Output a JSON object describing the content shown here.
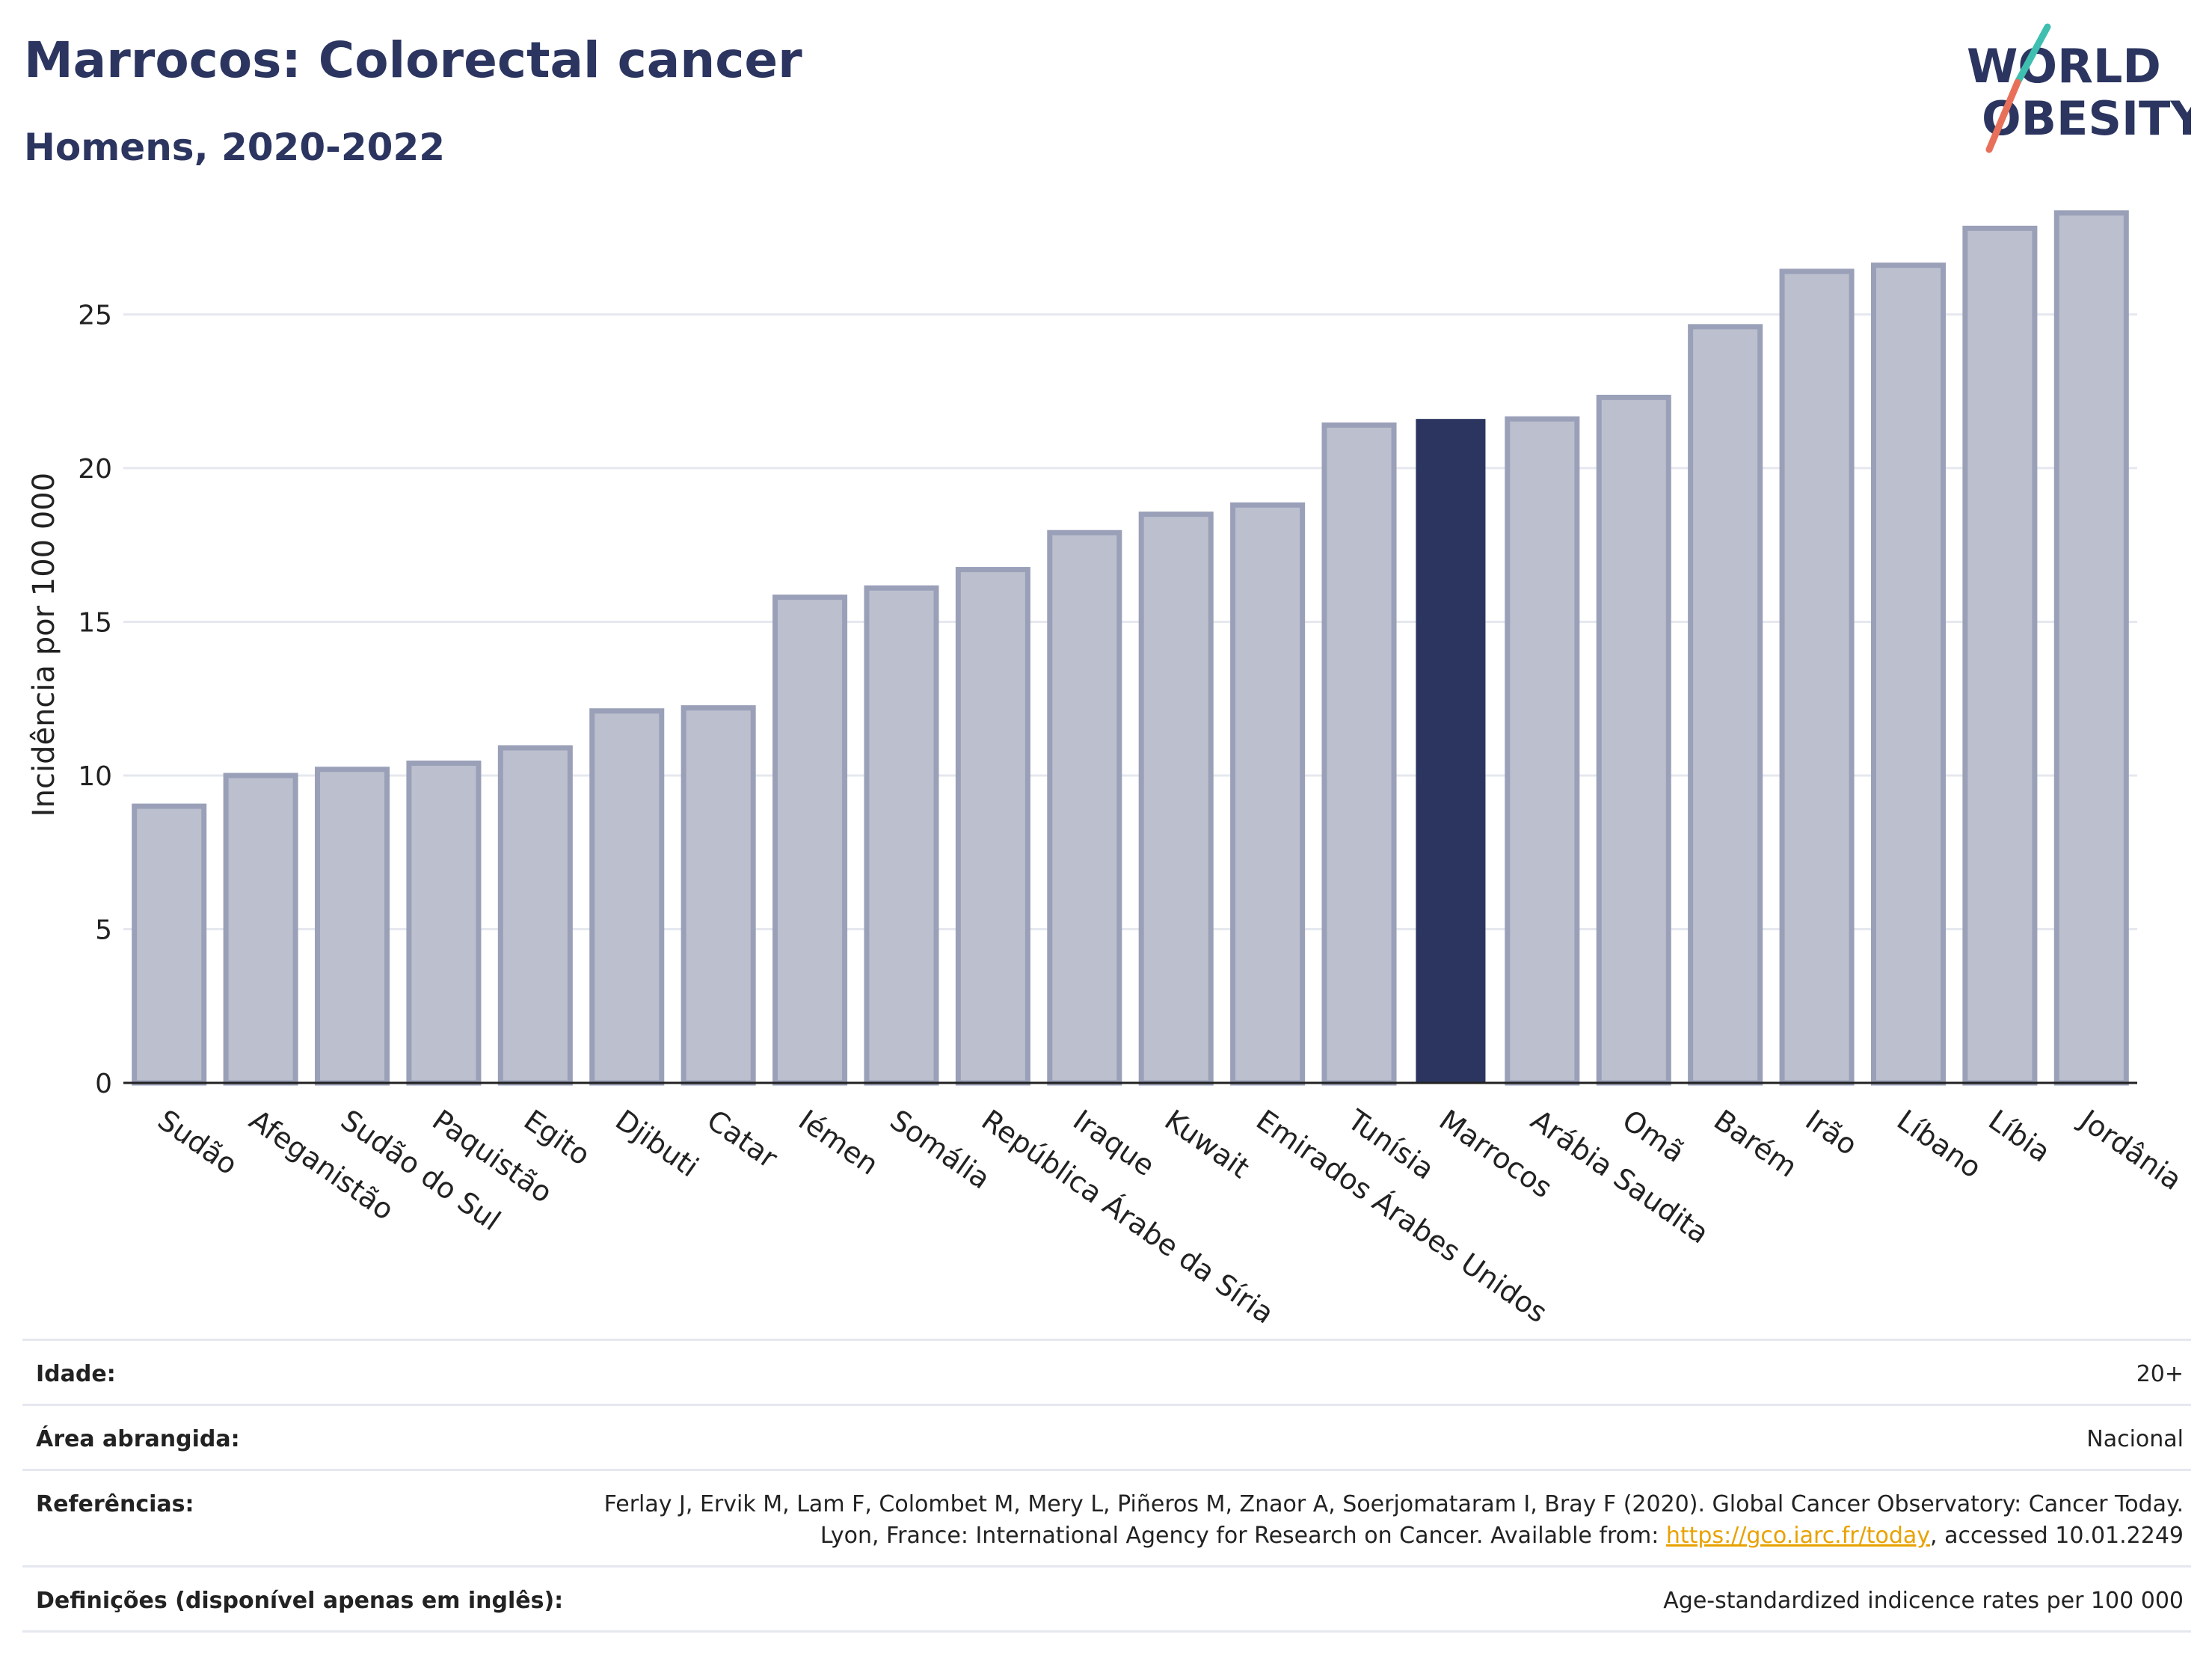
{
  "header": {
    "title": "Marrocos: Colorectal cancer",
    "subtitle": "Homens, 2020-2022"
  },
  "logo": {
    "line1": "WORLD",
    "line2": "OBESITY"
  },
  "colors": {
    "bar": "#bcc0ce",
    "bar_border": "#9aa0b8",
    "highlight": "#2b3560",
    "grid": "#e6e8ef"
  },
  "chart_data": {
    "type": "bar",
    "ylabel": "Incidência por 100 000",
    "ylim": [
      0,
      29
    ],
    "yticks": [
      0,
      5,
      10,
      15,
      20,
      25
    ],
    "highlight": "Marrocos",
    "categories": [
      "Sudão",
      "Afeganistão",
      "Sudão do Sul",
      "Paquistão",
      "Egito",
      "Djibuti",
      "Catar",
      "Iémen",
      "Somália",
      "República Árabe da Síria",
      "Iraque",
      "Kuwait",
      "Emirados Árabes Unidos",
      "Tunísia",
      "Marrocos",
      "Arábia Saudita",
      "Omã",
      "Barém",
      "Irão",
      "Líbano",
      "Líbia",
      "Jordânia"
    ],
    "values": [
      9.0,
      10.0,
      10.2,
      10.4,
      10.9,
      12.1,
      12.2,
      15.8,
      16.1,
      16.7,
      17.9,
      18.5,
      18.8,
      21.4,
      21.6,
      21.6,
      22.3,
      24.6,
      26.4,
      26.6,
      27.8,
      28.3
    ]
  },
  "footer": {
    "age_label": "Idade:",
    "age_value": "20+",
    "area_label": "Área abrangida:",
    "area_value": "Nacional",
    "ref_label": "Referências:",
    "ref_text_1": "Ferlay J, Ervik M, Lam F, Colombet M, Mery L, Piñeros M, Znaor A, Soerjomataram I, Bray F (2020). Global Cancer Observatory: Cancer Today. Lyon, France: International Agency for Research on Cancer. Available from: ",
    "ref_link": "https://gco.iarc.fr/today",
    "ref_text_2": ", accessed 10.01.2249",
    "def_label": "Definições (disponível apenas em inglês):",
    "def_value": "Age-standardized indicence rates per 100 000"
  }
}
